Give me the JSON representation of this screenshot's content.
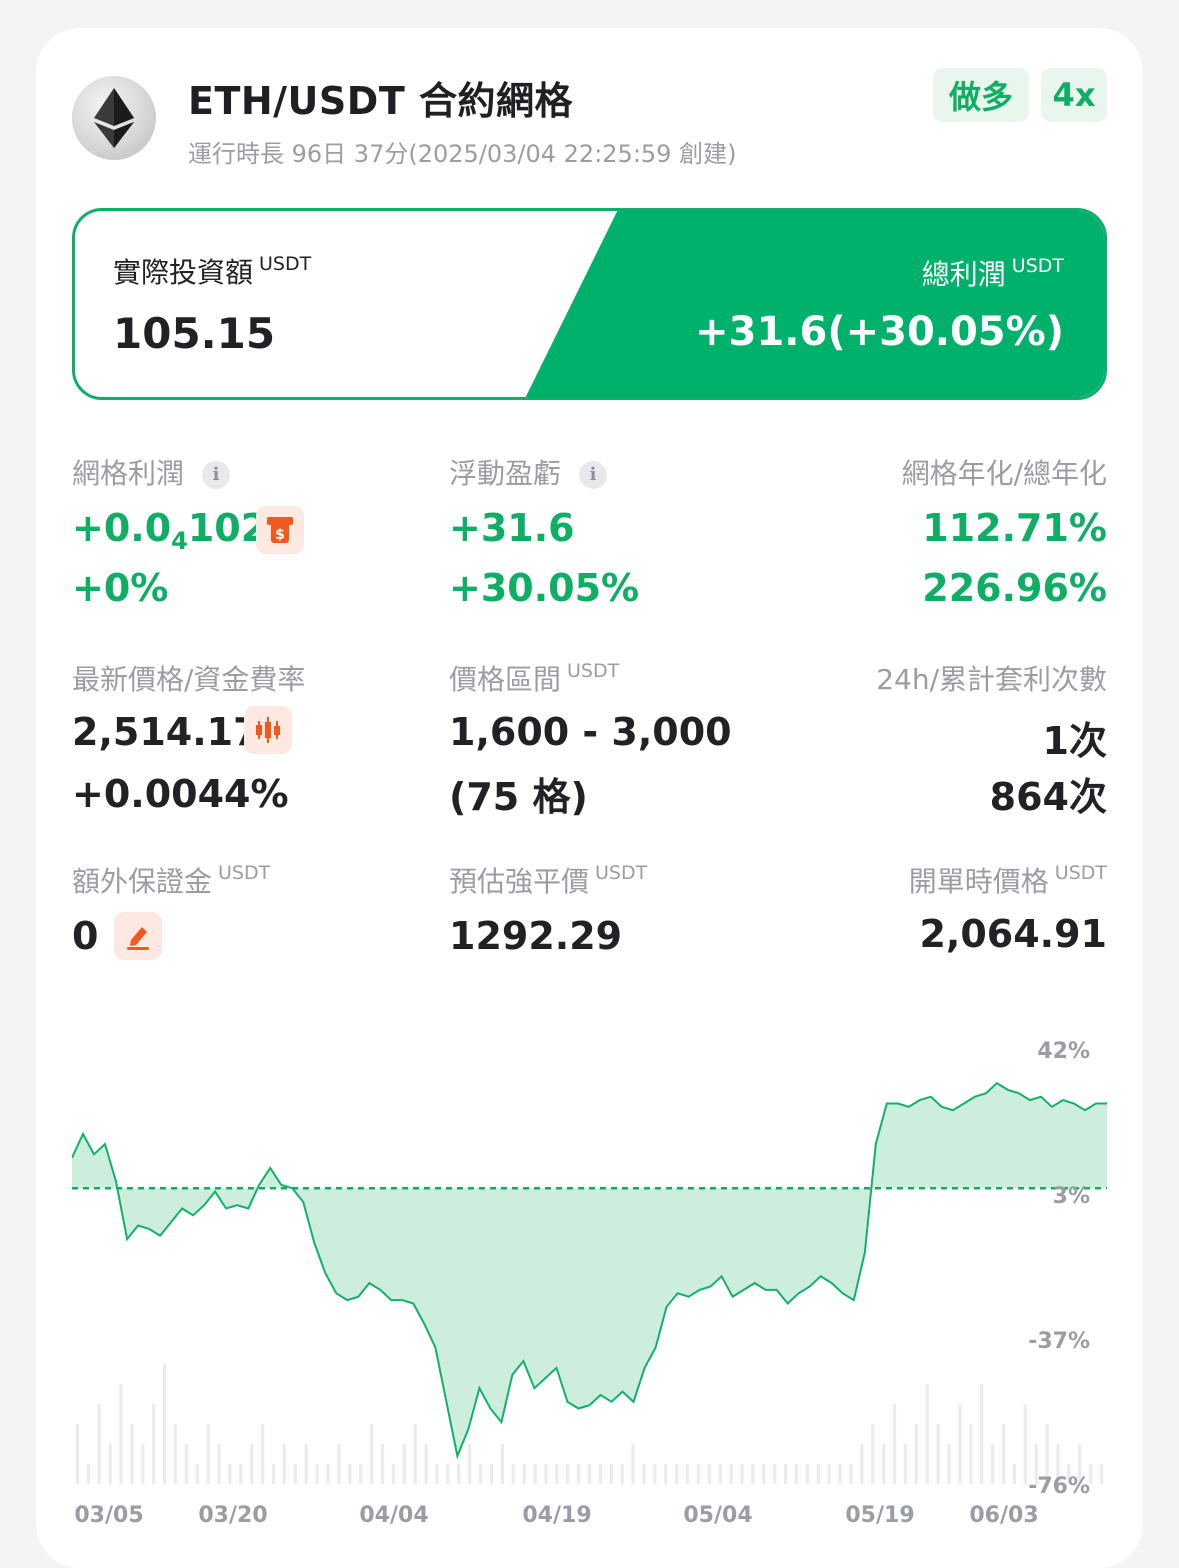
{
  "header": {
    "title": "ETH/USDT 合約網格",
    "runtime": "運行時長 96日 37分(2025/03/04 22:25:59 創建)",
    "direction_tag": "做多",
    "leverage_tag": "4x",
    "coin_icon": "ethereum-icon"
  },
  "summary": {
    "invest_label": "實際投資額",
    "invest_unit": "USDT",
    "invest_value": "105.15",
    "profit_label": "總利潤",
    "profit_unit": "USDT",
    "profit_value": "+31.6(+30.05%)"
  },
  "stats": {
    "grid_profit": {
      "label": "網格利潤",
      "value_prefix": "+0.0",
      "value_sub": "4",
      "value_suffix": "102",
      "percent": "+0%"
    },
    "floating_pnl": {
      "label": "浮動盈虧",
      "value": "+31.6",
      "percent": "+30.05%"
    },
    "annualized": {
      "label": "網格年化/總年化",
      "grid": "112.71%",
      "total": "226.96%"
    },
    "latest_price": {
      "label": "最新價格/資金費率",
      "price": "2,514.17",
      "funding": "+0.0044%"
    },
    "price_range": {
      "label": "價格區間",
      "unit": "USDT",
      "range": "1,600 - 3,000",
      "grids": "(75 格)"
    },
    "arbitrage": {
      "label": "24h/累計套利次數",
      "day": "1次",
      "total": "864次"
    },
    "extra_margin": {
      "label": "額外保證金",
      "unit": "USDT",
      "value": "0"
    },
    "liq_price": {
      "label": "預估強平價",
      "unit": "USDT",
      "value": "1292.29"
    },
    "open_price": {
      "label": "開單時價格",
      "unit": "USDT",
      "value": "2,064.91"
    }
  },
  "colors": {
    "accent": "#00b16c",
    "profit_green": "#0fae65",
    "badge_orange": "#f2591f"
  },
  "chart_data": {
    "type": "area",
    "ylabels": [
      "42%",
      "3%",
      "-37%",
      "-76%"
    ],
    "xlabels": [
      "03/05",
      "03/20",
      "04/04",
      "04/19",
      "05/04",
      "05/19",
      "06/03"
    ],
    "baseline": 3,
    "ylim": [
      -76,
      42
    ],
    "series": [
      {
        "values": [
          12,
          19,
          13,
          16,
          5,
          -12,
          -8,
          -9,
          -11,
          -7,
          -3,
          -5,
          -2,
          2,
          -3,
          -2,
          -3,
          4,
          9,
          4,
          3,
          -1,
          -13,
          -22,
          -28,
          -30,
          -29,
          -25,
          -27,
          -30,
          -30,
          -31,
          -37,
          -44,
          -60,
          -76,
          -68,
          -56,
          -62,
          -66,
          -52,
          -48,
          -56,
          -53,
          -50,
          -60,
          -62,
          -61,
          -58,
          -60,
          -57,
          -60,
          -50,
          -44,
          -32,
          -28,
          -29,
          -27,
          -26,
          -23,
          -29,
          -27,
          -25,
          -27,
          -27,
          -31,
          -28,
          -26,
          -23,
          -25,
          -28,
          -30,
          -16,
          16,
          28,
          28,
          27,
          29,
          30,
          27,
          26,
          28,
          30,
          31,
          34,
          32,
          31,
          29,
          30,
          27,
          29,
          28,
          26,
          28,
          28
        ]
      }
    ],
    "volume": [
      0.3,
      0.1,
      0.4,
      0.2,
      0.5,
      0.3,
      0.2,
      0.4,
      0.6,
      0.3,
      0.2,
      0.1,
      0.3,
      0.2,
      0.1,
      0.1,
      0.2,
      0.3,
      0.1,
      0.2,
      0.1,
      0.2,
      0.1,
      0.1,
      0.2,
      0.1,
      0.1,
      0.3,
      0.2,
      0.1,
      0.2,
      0.3,
      0.2,
      0.1,
      0.1,
      0.1,
      0.2,
      0.1,
      0.1,
      0.2,
      0.1,
      0.1,
      0.1,
      0.1,
      0.1,
      0.1,
      0.1,
      0.1,
      0.1,
      0.1,
      0.1,
      0.2,
      0.1,
      0.1,
      0.1,
      0.1,
      0.1,
      0.1,
      0.1,
      0.1,
      0.1,
      0.1,
      0.1,
      0.1,
      0.1,
      0.1,
      0.1,
      0.1,
      0.1,
      0.1,
      0.1,
      0.1,
      0.2,
      0.3,
      0.2,
      0.4,
      0.2,
      0.3,
      0.5,
      0.3,
      0.2,
      0.4,
      0.3,
      0.5,
      0.2,
      0.3,
      0.1,
      0.4,
      0.2,
      0.3,
      0.2,
      0.1,
      0.2,
      0.1,
      0.1
    ]
  }
}
